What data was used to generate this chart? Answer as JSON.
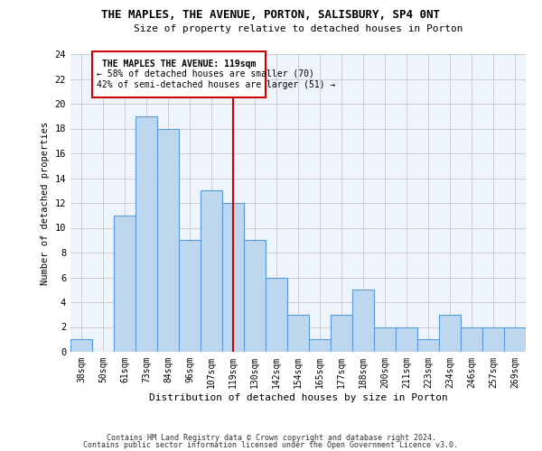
{
  "title": "THE MAPLES, THE AVENUE, PORTON, SALISBURY, SP4 0NT",
  "subtitle": "Size of property relative to detached houses in Porton",
  "xlabel": "Distribution of detached houses by size in Porton",
  "ylabel": "Number of detached properties",
  "categories": [
    "38sqm",
    "50sqm",
    "61sqm",
    "73sqm",
    "84sqm",
    "96sqm",
    "107sqm",
    "119sqm",
    "130sqm",
    "142sqm",
    "154sqm",
    "165sqm",
    "177sqm",
    "188sqm",
    "200sqm",
    "211sqm",
    "223sqm",
    "234sqm",
    "246sqm",
    "257sqm",
    "269sqm"
  ],
  "values": [
    1,
    0,
    11,
    19,
    18,
    9,
    13,
    12,
    9,
    6,
    3,
    1,
    3,
    5,
    2,
    2,
    1,
    3,
    2,
    2,
    2
  ],
  "bar_color": "#BDD7EE",
  "bar_edge_color": "#5B9BD5",
  "marker_index": 7,
  "marker_color": "#CC0000",
  "annotation_title": "THE MAPLES THE AVENUE: 119sqm",
  "annotation_line1": "← 58% of detached houses are smaller (70)",
  "annotation_line2": "42% of semi-detached houses are larger (51) →",
  "annotation_box_color": "#CC0000",
  "ylim": [
    0,
    24
  ],
  "yticks": [
    0,
    2,
    4,
    6,
    8,
    10,
    12,
    14,
    16,
    18,
    20,
    22,
    24
  ],
  "grid_color": "#C0C0C0",
  "background_color": "#EEF4FB",
  "footer_line1": "Contains HM Land Registry data © Crown copyright and database right 2024.",
  "footer_line2": "Contains public sector information licensed under the Open Government Licence v3.0."
}
